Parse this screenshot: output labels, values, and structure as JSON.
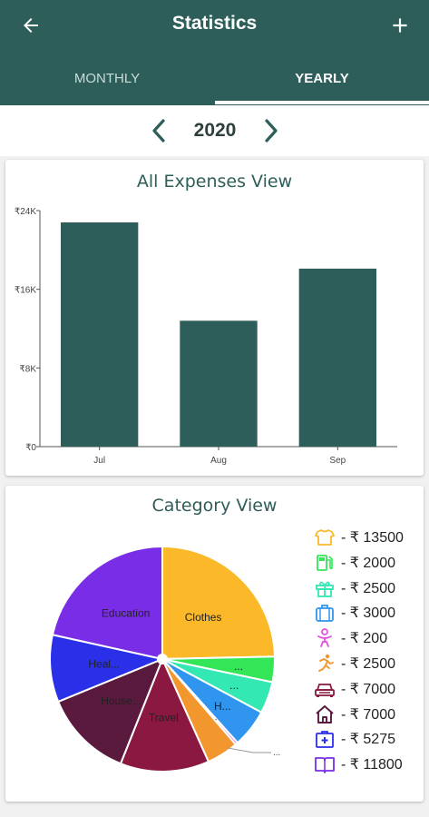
{
  "appbar": {
    "title": "Statistics",
    "back_icon": "arrow-left-icon",
    "add_icon": "plus-icon",
    "tabs": [
      {
        "label": "MONTHLY",
        "selected": false
      },
      {
        "label": "YEARLY",
        "selected": true
      }
    ]
  },
  "year_nav": {
    "year": "2020",
    "prev_icon": "chevron-left-icon",
    "next_icon": "chevron-right-icon"
  },
  "colors": {
    "primary": "#2e5e59",
    "bar": "#2e5e59"
  },
  "chart_data": [
    {
      "type": "bar",
      "title": "All Expenses View",
      "categories": [
        "Jul",
        "Aug",
        "Sep"
      ],
      "values": [
        22800,
        12800,
        18100
      ],
      "ylim": [
        0,
        24000
      ],
      "yticks": [
        0,
        8000,
        16000,
        24000
      ],
      "ytick_labels": [
        "₹0",
        "₹8K",
        "₹16K",
        "₹24K"
      ],
      "xlabel": "",
      "ylabel": "",
      "grid": false
    },
    {
      "type": "pie",
      "title": "Category View",
      "slices": [
        {
          "label": "Clothes",
          "value": 13500,
          "color": "#fbb829",
          "icon": "shirt-icon"
        },
        {
          "label": "...",
          "value": 2000,
          "color": "#33e657",
          "icon": "fuel-icon"
        },
        {
          "label": "...",
          "value": 2500,
          "color": "#34e8b4",
          "icon": "gift-icon"
        },
        {
          "label": "H...",
          "value": 3000,
          "color": "#2f95ee",
          "icon": "luggage-icon"
        },
        {
          "label": "...",
          "value": 200,
          "color": "#e54fde",
          "icon": "baby-icon"
        },
        {
          "label": "",
          "value": 2500,
          "color": "#f2962e",
          "icon": "running-icon"
        },
        {
          "label": "Travel",
          "value": 7000,
          "color": "#8a1840",
          "icon": "car-icon"
        },
        {
          "label": "House...",
          "value": 7000,
          "color": "#5a1a3e",
          "icon": "house-icon"
        },
        {
          "label": "Heal...",
          "value": 5275,
          "color": "#2a2fe8",
          "icon": "medical-icon"
        },
        {
          "label": "Education",
          "value": 11800,
          "color": "#7a2de6",
          "icon": "book-icon"
        }
      ],
      "legend": [
        {
          "text": "- ₹ 13500"
        },
        {
          "text": "- ₹ 2000"
        },
        {
          "text": "- ₹ 2500"
        },
        {
          "text": "- ₹ 3000"
        },
        {
          "text": "- ₹ 200"
        },
        {
          "text": "- ₹ 2500"
        },
        {
          "text": "- ₹ 7000"
        },
        {
          "text": "- ₹ 7000"
        },
        {
          "text": "- ₹ 5275"
        },
        {
          "text": "- ₹ 11800"
        }
      ],
      "legend_placement": "right"
    }
  ]
}
